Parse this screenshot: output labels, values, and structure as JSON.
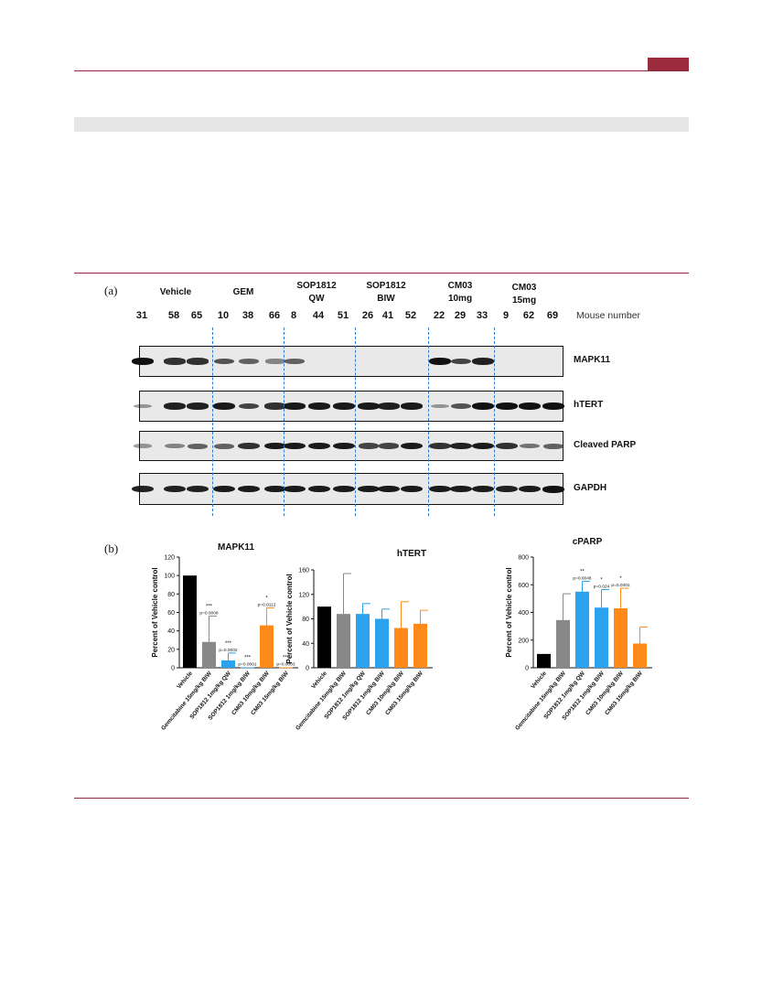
{
  "figure": {
    "panel_a_label": "(a)",
    "panel_b_label": "(b)",
    "mouse_number_label": "Mouse number",
    "groups": [
      {
        "line1": "Vehicle",
        "line2": "",
        "mice": [
          "31",
          "58",
          "65"
        ]
      },
      {
        "line1": "GEM",
        "line2": "",
        "mice": [
          "10",
          "38",
          "66"
        ]
      },
      {
        "line1": "SOP1812",
        "line2": "QW",
        "mice": [
          "8",
          "44",
          "51"
        ]
      },
      {
        "line1": "SOP1812",
        "line2": "BIW",
        "mice": [
          "26",
          "41",
          "52"
        ]
      },
      {
        "line1": "CM03",
        "line2": "10mg",
        "mice": [
          "22",
          "29",
          "33"
        ]
      },
      {
        "line1": "CM03",
        "line2": "15mg",
        "mice": [
          "9",
          "62",
          "69"
        ]
      }
    ],
    "blots": [
      "MAPK11",
      "hTERT",
      "Cleaved PARP",
      "GAPDH"
    ]
  },
  "colors": {
    "rule": "#8a2b3f",
    "vehicle": "#000000",
    "gemcitabine": "#888888",
    "sop1812": "#2aa2ee",
    "cm03": "#ff8a1a",
    "divider": "#2a7bd1"
  },
  "chart_data": [
    {
      "type": "bar",
      "title": "MAPK11",
      "ylabel": "Percent of Vehicle control",
      "ylim": [
        0,
        120
      ],
      "yticks": [
        "0",
        "20",
        "40",
        "60",
        "80",
        "100",
        "120"
      ],
      "categories": [
        "Vehicle",
        "Gemcitabine 15mg/kg BIW",
        "SOP1812 1mg/kg QW",
        "SOP1812 1mg/kg BIW",
        "CM03 10mg/kg BIW",
        "CM03 15mg/kg BIW"
      ],
      "values": [
        100,
        28,
        8,
        0.5,
        46,
        0.5
      ],
      "errors": [
        0,
        28,
        8,
        0,
        19,
        0
      ],
      "colors": [
        "#000000",
        "#888888",
        "#2aa2ee",
        "#2aa2ee",
        "#ff8a1a",
        "#ff8a1a"
      ],
      "annotations": [
        {
          "index": 1,
          "stars": "***",
          "pvalue": "p=0.0008"
        },
        {
          "index": 2,
          "stars": "***",
          "pvalue": "p=0.0002"
        },
        {
          "index": 3,
          "stars": "***",
          "pvalue": "p=0.0001"
        },
        {
          "index": 4,
          "stars": "*",
          "pvalue": "p=0.0112"
        },
        {
          "index": 5,
          "stars": "***",
          "pvalue": "p=0.0003"
        }
      ]
    },
    {
      "type": "bar",
      "title": "hTERT",
      "ylabel": "Percent of Vehicle control",
      "ylim": [
        0,
        160
      ],
      "yticks": [
        "0",
        "40",
        "80",
        "120",
        "160"
      ],
      "categories": [
        "Vehicle",
        "Gemcitabine 15mg/kg BIW",
        "SOP1812 1mg/kg QW",
        "SOP1812 1mg/kg BIW",
        "CM03 10mg/kg BIW",
        "CM03 15mg/kg BIW"
      ],
      "values": [
        100,
        88,
        88,
        80,
        65,
        72
      ],
      "errors": [
        0,
        66,
        17,
        16,
        43,
        22
      ],
      "colors": [
        "#000000",
        "#888888",
        "#2aa2ee",
        "#2aa2ee",
        "#ff8a1a",
        "#ff8a1a"
      ],
      "annotations": []
    },
    {
      "type": "bar",
      "title": "cPARP",
      "ylabel": "Percent of Vehicle control",
      "ylim": [
        0,
        800
      ],
      "yticks": [
        "0",
        "200",
        "400",
        "600",
        "800"
      ],
      "categories": [
        "Vehicle",
        "Gemcitabine 15mg/kg BIW",
        "SOP1812 1mg/kg QW",
        "SOP1812 1mg/kg BIW",
        "CM03 10mg/kg BIW",
        "CM03 15mg/kg BIW"
      ],
      "values": [
        100,
        345,
        550,
        435,
        430,
        175
      ],
      "errors": [
        0,
        190,
        75,
        130,
        145,
        120
      ],
      "colors": [
        "#000000",
        "#888888",
        "#2aa2ee",
        "#2aa2ee",
        "#ff8a1a",
        "#ff8a1a"
      ],
      "annotations": [
        {
          "index": 2,
          "stars": "**",
          "pvalue": "p=0.0048"
        },
        {
          "index": 3,
          "stars": "*",
          "pvalue": "p=0.024"
        },
        {
          "index": 4,
          "stars": "*",
          "pvalue": "p=0.0401"
        }
      ]
    }
  ]
}
